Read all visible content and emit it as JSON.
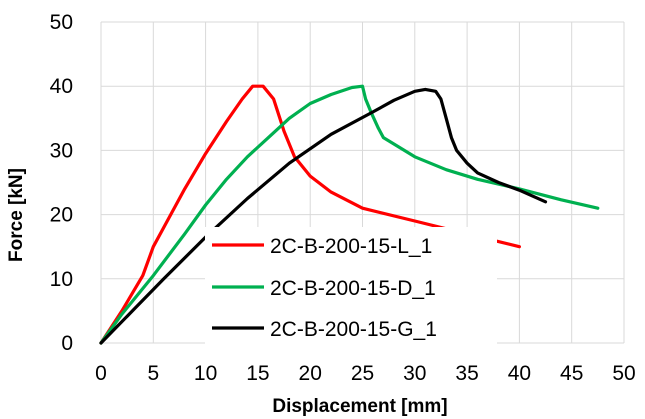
{
  "chart_data": {
    "type": "line",
    "title": "",
    "xlabel": "Displacement [mm]",
    "ylabel": "Force [kN]",
    "xlim": [
      0,
      50
    ],
    "ylim": [
      0,
      50
    ],
    "x_ticks": [
      "0",
      "5",
      "10",
      "15",
      "20",
      "25",
      "30",
      "35",
      "40",
      "45",
      "50"
    ],
    "y_ticks": [
      "0",
      "10",
      "20",
      "30",
      "40",
      "50"
    ],
    "grid": true,
    "legend_position": "lower-center",
    "series": [
      {
        "name": "2C-B-200-15-L_1",
        "color": "#ff0000",
        "points": [
          [
            0,
            0
          ],
          [
            2,
            5
          ],
          [
            4,
            10.5
          ],
          [
            5,
            15
          ],
          [
            6,
            18
          ],
          [
            8,
            24
          ],
          [
            10,
            29.5
          ],
          [
            12,
            34.5
          ],
          [
            13.5,
            38
          ],
          [
            14.5,
            40
          ],
          [
            15.5,
            40
          ],
          [
            16.5,
            38
          ],
          [
            17.5,
            33
          ],
          [
            18.5,
            29
          ],
          [
            20,
            26
          ],
          [
            22,
            23.5
          ],
          [
            25,
            21
          ],
          [
            30,
            19
          ],
          [
            35,
            17
          ],
          [
            40,
            15
          ]
        ]
      },
      {
        "name": "2C-B-200-15-D_1",
        "color": "#00b050",
        "points": [
          [
            0,
            0
          ],
          [
            2,
            4.5
          ],
          [
            5,
            10.5
          ],
          [
            8,
            17
          ],
          [
            10,
            21.5
          ],
          [
            12,
            25.5
          ],
          [
            14,
            29
          ],
          [
            16,
            32
          ],
          [
            18,
            35
          ],
          [
            20,
            37.3
          ],
          [
            22,
            38.7
          ],
          [
            24,
            39.8
          ],
          [
            25,
            40
          ],
          [
            25.3,
            38
          ],
          [
            25.8,
            36
          ],
          [
            26.5,
            33.5
          ],
          [
            27,
            32
          ],
          [
            28,
            31
          ],
          [
            30,
            29
          ],
          [
            33,
            27
          ],
          [
            36,
            25.5
          ],
          [
            40,
            24
          ],
          [
            44,
            22.3
          ],
          [
            47.5,
            21
          ]
        ]
      },
      {
        "name": "2C-B-200-15-G_1",
        "color": "#000000",
        "points": [
          [
            0,
            0
          ],
          [
            3,
            5
          ],
          [
            6,
            10
          ],
          [
            10,
            16.5
          ],
          [
            14,
            22.5
          ],
          [
            18,
            28
          ],
          [
            22,
            32.5
          ],
          [
            26,
            36
          ],
          [
            28,
            37.8
          ],
          [
            30,
            39.2
          ],
          [
            31,
            39.5
          ],
          [
            32,
            39.2
          ],
          [
            32.5,
            38
          ],
          [
            33,
            35
          ],
          [
            33.5,
            32
          ],
          [
            34,
            30
          ],
          [
            35,
            28
          ],
          [
            36,
            26.5
          ],
          [
            38,
            25
          ],
          [
            40,
            23.8
          ],
          [
            42.5,
            22
          ]
        ]
      }
    ]
  }
}
